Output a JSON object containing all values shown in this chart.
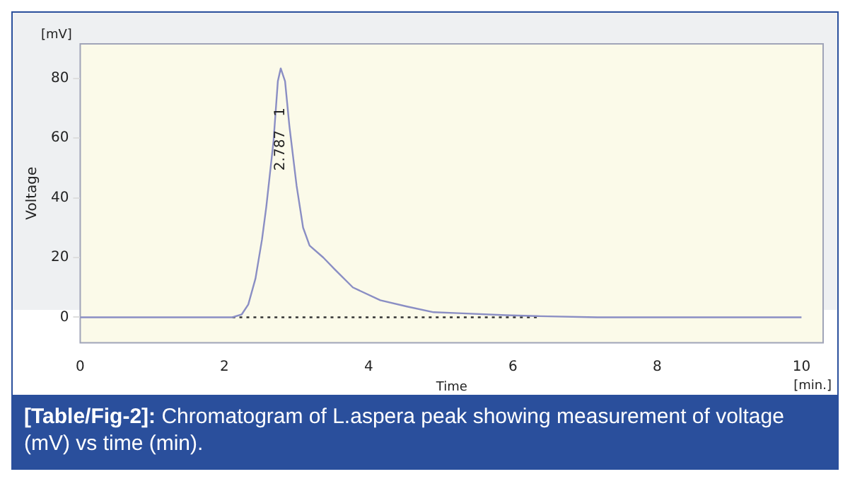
{
  "chart_data": {
    "type": "line",
    "ylabel": "Voltage",
    "xlabel": "Time",
    "annotations": [
      "2.787   1",
      "[mV]",
      "[min.]",
      "[Table/Fig-2]: Chromatogram of L.aspera peak showing measurement of voltage (mV) vs time (min)."
    ],
    "series": [
      {
        "color": "#8a8ec4",
        "x": [
          0,
          1,
          2.11,
          2.24,
          2.33,
          2.43,
          2.52,
          2.58,
          2.68,
          2.74,
          2.78,
          2.84,
          2.9,
          3.0,
          3.09,
          3.18,
          3.37,
          3.53,
          3.78,
          4.16,
          4.53,
          4.9,
          5.24,
          5.9,
          6.33,
          7.17,
          7.7,
          10
        ],
        "values": [
          0,
          0,
          0,
          1,
          4.3,
          13,
          26,
          37,
          59,
          79,
          83.3,
          79,
          64,
          44,
          30,
          24,
          20,
          16,
          10,
          5.7,
          3.6,
          1.7,
          1.4,
          0.7,
          0.4,
          0,
          0,
          0
        ]
      },
      {
        "color": "#333333",
        "line_style": "dotted",
        "x": [
          2.11,
          6.33
        ],
        "values": [
          0,
          0
        ]
      }
    ],
    "xlim": [
      0,
      10.3
    ],
    "ylim": [
      -8.5,
      91.5
    ],
    "xticks": [
      0,
      2,
      4,
      6,
      8,
      10
    ],
    "yticks": [
      0,
      20,
      40,
      60,
      80
    ],
    "grid": false,
    "legend": false,
    "marker": "none"
  }
}
